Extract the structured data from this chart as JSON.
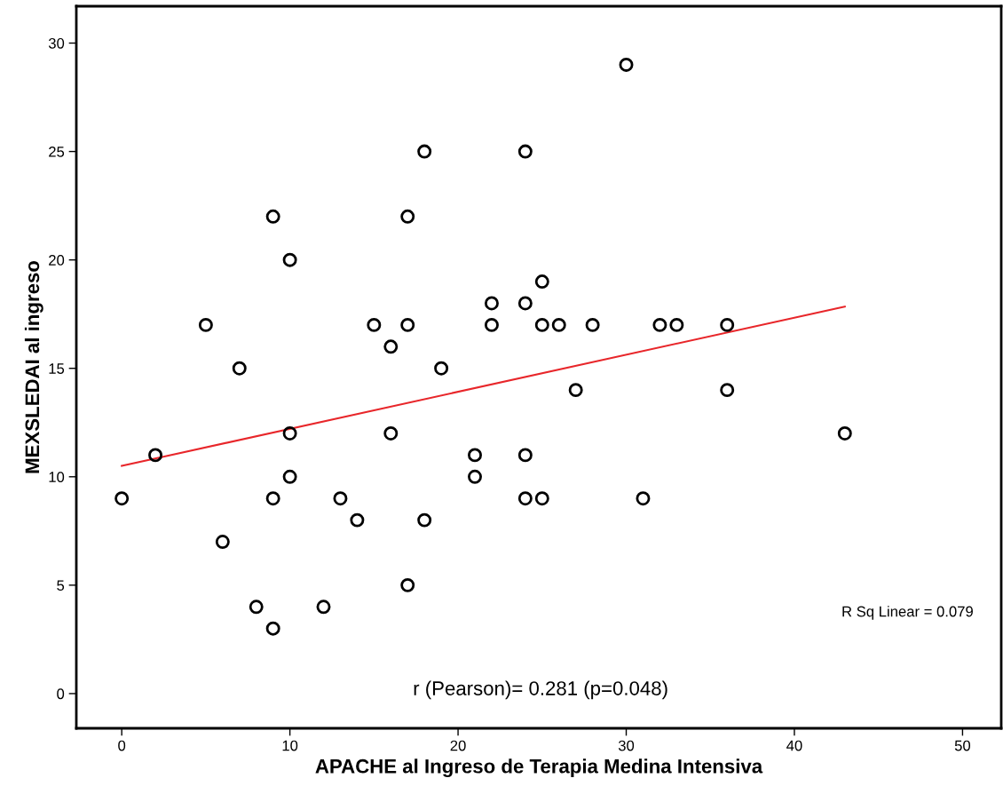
{
  "chart_data": {
    "type": "scatter",
    "xlabel": "APACHE al Ingreso de Terapia Medina Intensiva",
    "ylabel": "MEXSLEDAI al ingreso",
    "xlim": [
      -2.7,
      52.3
    ],
    "ylim": [
      -1.6,
      31.7
    ],
    "xticks": [
      0,
      10,
      20,
      30,
      40,
      50
    ],
    "yticks": [
      0,
      5,
      10,
      15,
      20,
      25,
      30
    ],
    "grid": false,
    "series": [
      {
        "marker": "circle",
        "color": "#000000",
        "x": [
          0,
          2,
          5,
          6,
          7,
          8,
          9,
          9,
          9,
          10,
          10,
          10,
          12,
          13,
          14,
          15,
          16,
          16,
          17,
          17,
          17,
          18,
          18,
          19,
          21,
          21,
          22,
          22,
          24,
          24,
          24,
          24,
          25,
          25,
          25,
          26,
          27,
          28,
          30,
          31,
          32,
          33,
          36,
          36,
          43
        ],
        "values": [
          9,
          11,
          17,
          7,
          15,
          4,
          22,
          9,
          3,
          20,
          12,
          10,
          4,
          9,
          8,
          17,
          16,
          12,
          22,
          17,
          5,
          25,
          8,
          15,
          11,
          10,
          18,
          17,
          25,
          18,
          11,
          9,
          19,
          17,
          9,
          17,
          14,
          17,
          29,
          9,
          17,
          17,
          17,
          14,
          12
        ]
      },
      {
        "type": "line",
        "marker": "none",
        "color": "#e8262a",
        "x": [
          0,
          43
        ],
        "values": [
          10.5,
          17.85
        ]
      }
    ],
    "annotations": [
      "R Sq Linear = 0.079",
      "r (Pearson)= 0.281 (p=0.048)"
    ]
  }
}
